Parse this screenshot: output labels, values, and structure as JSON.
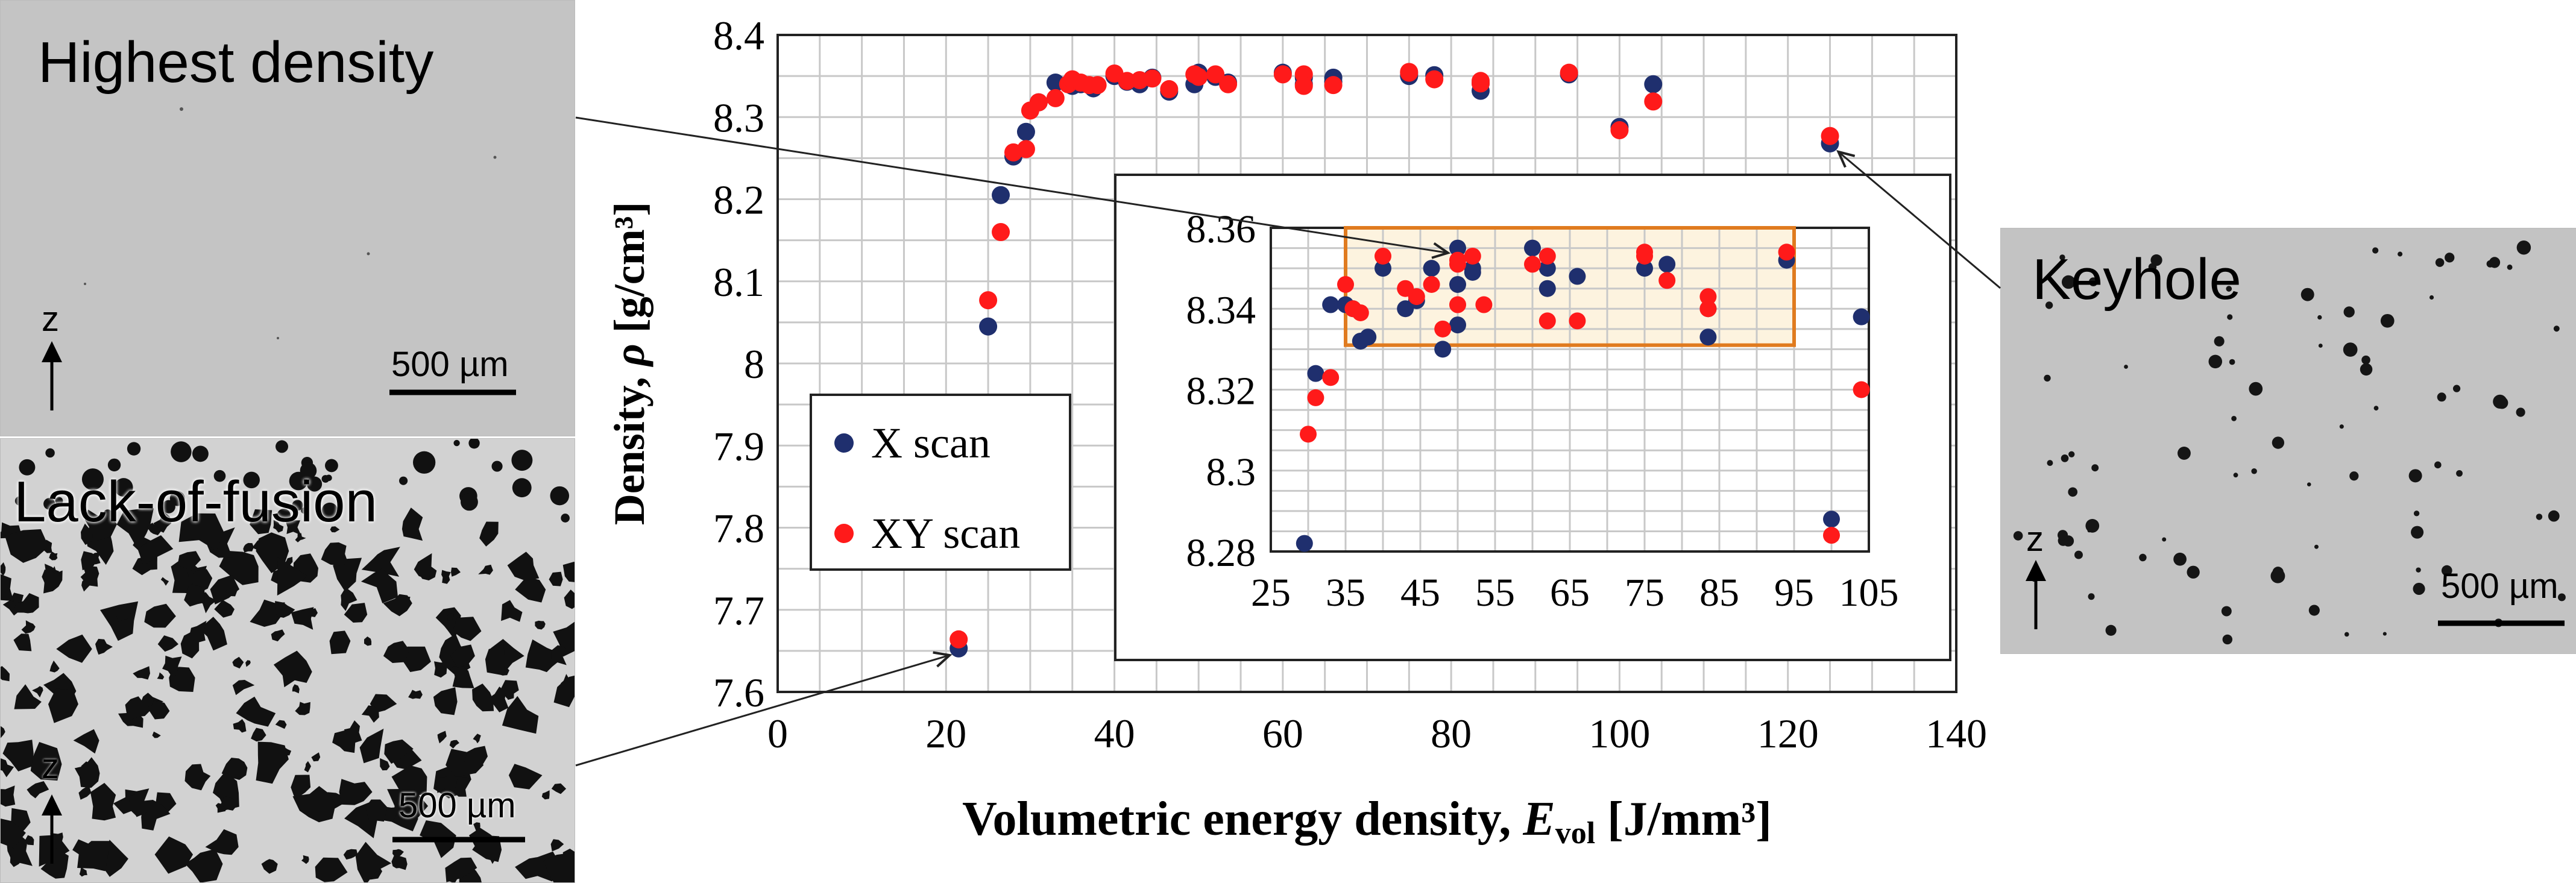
{
  "panels": {
    "highest": {
      "title": "Highest density",
      "scale": "500 µm",
      "axis": "z"
    },
    "lof": {
      "title": "Lack-of-fusion",
      "scale": "500 µm",
      "axis": "z"
    },
    "keyhole": {
      "title": "Keyhole",
      "scale": "500 µm",
      "axis": "z"
    }
  },
  "colors": {
    "x_scan": "#1f2f6e",
    "xy_scan": "#ff1a1a",
    "inset_box": "#e07b1f",
    "inset_fill": "#fdf3df"
  },
  "chart_data": [
    {
      "type": "scatter",
      "name": "main",
      "xlabel_main": "Volumetric energy density, ",
      "xlabel_var": "E",
      "xlabel_sub": "vol",
      "xlabel_unit": " [J/mm³]",
      "ylabel_main": "Density, ",
      "ylabel_var": "ρ",
      "ylabel_unit": " [g/cm³]",
      "xlim": [
        0,
        140
      ],
      "ylim": [
        7.6,
        8.4
      ],
      "xticks": [
        "0",
        "20",
        "40",
        "60",
        "80",
        "100",
        "120",
        "140"
      ],
      "yticks": [
        "7.6",
        "7.7",
        "7.8",
        "7.9",
        "8",
        "8.1",
        "8.2",
        "8.3",
        "8.4"
      ],
      "legend": [
        "X scan",
        "XY scan"
      ],
      "series": [
        {
          "name": "X scan",
          "points": [
            [
              21.5,
              7.653
            ],
            [
              25,
              8.045
            ],
            [
              26.5,
              8.205
            ],
            [
              28,
              8.252
            ],
            [
              29.5,
              8.282
            ],
            [
              31,
              8.318
            ],
            [
              33,
              8.342
            ],
            [
              35,
              8.338
            ],
            [
              36,
              8.34
            ],
            [
              37.5,
              8.335
            ],
            [
              40,
              8.35
            ],
            [
              41.5,
              8.343
            ],
            [
              43,
              8.34
            ],
            [
              44.5,
              8.348
            ],
            [
              46.5,
              8.331
            ],
            [
              49.5,
              8.34
            ],
            [
              50,
              8.354
            ],
            [
              52,
              8.349
            ],
            [
              53.5,
              8.342
            ],
            [
              60,
              8.354
            ],
            [
              62.5,
              8.348
            ],
            [
              62.5,
              8.34
            ],
            [
              66,
              8.348
            ],
            [
              66,
              8.343
            ],
            [
              75,
              8.352
            ],
            [
              75,
              8.35
            ],
            [
              78,
              8.351
            ],
            [
              83.5,
              8.332
            ],
            [
              83.5,
              8.341
            ],
            [
              94,
              8.352
            ],
            [
              100,
              8.288
            ],
            [
              104,
              8.34
            ],
            [
              125,
              8.268
            ]
          ]
        },
        {
          "name": "XY scan",
          "points": [
            [
              21.5,
              7.664
            ],
            [
              25,
              8.077
            ],
            [
              26.5,
              8.16
            ],
            [
              28,
              8.257
            ],
            [
              29.5,
              8.261
            ],
            [
              30,
              8.308
            ],
            [
              31,
              8.318
            ],
            [
              33,
              8.323
            ],
            [
              34.5,
              8.34
            ],
            [
              35,
              8.346
            ],
            [
              36,
              8.342
            ],
            [
              37,
              8.339
            ],
            [
              38,
              8.339
            ],
            [
              40,
              8.353
            ],
            [
              41.5,
              8.344
            ],
            [
              43,
              8.345
            ],
            [
              44.5,
              8.347
            ],
            [
              46.5,
              8.334
            ],
            [
              49.5,
              8.352
            ],
            [
              50,
              8.349
            ],
            [
              52,
              8.352
            ],
            [
              53.5,
              8.34
            ],
            [
              60,
              8.352
            ],
            [
              62.5,
              8.352
            ],
            [
              62.5,
              8.338
            ],
            [
              66,
              8.339
            ],
            [
              75,
              8.355
            ],
            [
              75,
              8.354
            ],
            [
              78,
              8.346
            ],
            [
              83.5,
              8.344
            ],
            [
              83.5,
              8.341
            ],
            [
              94,
              8.354
            ],
            [
              100,
              8.284
            ],
            [
              104,
              8.319
            ],
            [
              125,
              8.277
            ]
          ]
        }
      ]
    },
    {
      "type": "scatter",
      "name": "inset",
      "xlim": [
        25,
        105
      ],
      "ylim": [
        8.28,
        8.36
      ],
      "xticks": [
        "25",
        "35",
        "45",
        "55",
        "65",
        "75",
        "85",
        "95",
        "105"
      ],
      "yticks": [
        "8.28",
        "8.3",
        "8.32",
        "8.34",
        "8.36"
      ],
      "highlight": {
        "x": [
          35,
          95
        ],
        "y": [
          8.331,
          8.36
        ]
      },
      "series": [
        {
          "name": "X scan",
          "points": [
            [
              29.5,
              8.282
            ],
            [
              31,
              8.324
            ],
            [
              33,
              8.341
            ],
            [
              35,
              8.341
            ],
            [
              36,
              8.34
            ],
            [
              37,
              8.332
            ],
            [
              38,
              8.333
            ],
            [
              40,
              8.35
            ],
            [
              43,
              8.34
            ],
            [
              44.5,
              8.342
            ],
            [
              46.5,
              8.35
            ],
            [
              48,
              8.33
            ],
            [
              50,
              8.336
            ],
            [
              50,
              8.346
            ],
            [
              50,
              8.355
            ],
            [
              52,
              8.35
            ],
            [
              52,
              8.349
            ],
            [
              60,
              8.355
            ],
            [
              62,
              8.345
            ],
            [
              62,
              8.35
            ],
            [
              66,
              8.348
            ],
            [
              75,
              8.35
            ],
            [
              78,
              8.351
            ],
            [
              83.5,
              8.333
            ],
            [
              83.5,
              8.34
            ],
            [
              94,
              8.352
            ],
            [
              100,
              8.288
            ],
            [
              104,
              8.338
            ]
          ]
        },
        {
          "name": "XY scan",
          "points": [
            [
              30,
              8.309
            ],
            [
              31,
              8.318
            ],
            [
              33,
              8.323
            ],
            [
              35,
              8.346
            ],
            [
              36,
              8.34
            ],
            [
              37,
              8.339
            ],
            [
              40,
              8.353
            ],
            [
              43,
              8.345
            ],
            [
              44.5,
              8.343
            ],
            [
              46.5,
              8.346
            ],
            [
              48,
              8.335
            ],
            [
              50,
              8.341
            ],
            [
              50,
              8.351
            ],
            [
              50,
              8.352
            ],
            [
              52,
              8.353
            ],
            [
              53.5,
              8.341
            ],
            [
              60,
              8.351
            ],
            [
              62,
              8.353
            ],
            [
              62,
              8.337
            ],
            [
              66,
              8.337
            ],
            [
              75,
              8.354
            ],
            [
              75,
              8.353
            ],
            [
              78,
              8.347
            ],
            [
              83.5,
              8.343
            ],
            [
              83.5,
              8.34
            ],
            [
              94,
              8.354
            ],
            [
              100,
              8.284
            ],
            [
              104,
              8.32
            ]
          ]
        }
      ]
    }
  ]
}
